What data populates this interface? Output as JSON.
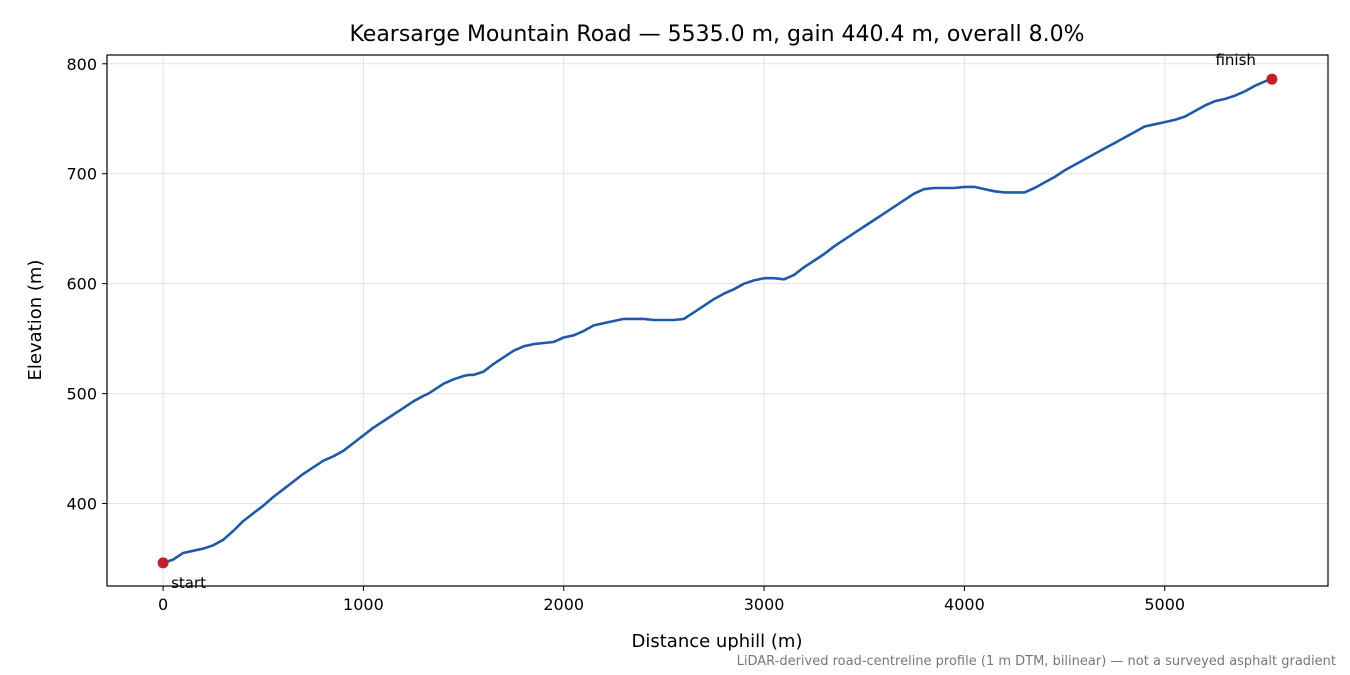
{
  "chart_data": {
    "type": "line",
    "title": "Kearsarge Mountain Road — 5535.0 m, gain 440.4 m, overall 8.0%",
    "xlabel": "Distance uphill (m)",
    "ylabel": "Elevation (m)",
    "xlim": [
      -280,
      5815
    ],
    "ylim": [
      325,
      808
    ],
    "xticks": [
      0,
      1000,
      2000,
      3000,
      4000,
      5000
    ],
    "yticks": [
      400,
      500,
      600,
      700,
      800
    ],
    "grid": true,
    "line_color": "#1f5aa8",
    "marker_color": "#c41e2a",
    "series": [
      {
        "x": [
          0,
          50,
          100,
          150,
          200,
          250,
          300,
          350,
          400,
          450,
          500,
          550,
          600,
          650,
          700,
          750,
          800,
          850,
          900,
          950,
          1000,
          1050,
          1100,
          1150,
          1200,
          1250,
          1300,
          1325,
          1350,
          1400,
          1450,
          1500,
          1525,
          1550,
          1600,
          1650,
          1700,
          1750,
          1800,
          1850,
          1900,
          1950,
          2000,
          2050,
          2100,
          2150,
          2200,
          2250,
          2300,
          2350,
          2400,
          2450,
          2500,
          2550,
          2600,
          2650,
          2700,
          2750,
          2800,
          2850,
          2900,
          2950,
          3000,
          3050,
          3100,
          3150,
          3200,
          3250,
          3300,
          3350,
          3400,
          3450,
          3500,
          3550,
          3600,
          3650,
          3700,
          3750,
          3800,
          3850,
          3900,
          3950,
          4000,
          4050,
          4100,
          4150,
          4200,
          4250,
          4300,
          4350,
          4400,
          4450,
          4500,
          4550,
          4600,
          4650,
          4700,
          4750,
          4800,
          4850,
          4900,
          4950,
          5000,
          5050,
          5100,
          5150,
          5200,
          5250,
          5300,
          5350,
          5400,
          5450,
          5500,
          5535
        ],
        "y": [
          346,
          349,
          355,
          357,
          359,
          362,
          367,
          375,
          384,
          391,
          398,
          406,
          413,
          420,
          427,
          433,
          439,
          443,
          448,
          455,
          462,
          469,
          475,
          481,
          487,
          493,
          498,
          500,
          503,
          509,
          513,
          516,
          517,
          517,
          520,
          527,
          533,
          539,
          543,
          545,
          546,
          547,
          551,
          553,
          557,
          562,
          564,
          566,
          568,
          568,
          568,
          567,
          567,
          567,
          568,
          574,
          580,
          586,
          591,
          595,
          600,
          603,
          605,
          605,
          604,
          608,
          615,
          621,
          627,
          634,
          640,
          646,
          652,
          658,
          664,
          670,
          676,
          682,
          686,
          687,
          687,
          687,
          688,
          688,
          686,
          684,
          683,
          683,
          683,
          687,
          692,
          697,
          703,
          708,
          713,
          718,
          723,
          728,
          733,
          738,
          743,
          745,
          747,
          749,
          752,
          757,
          762,
          766,
          768,
          771,
          775,
          780,
          784,
          786
        ]
      }
    ],
    "annotations": [
      {
        "label": "start",
        "x": 0,
        "y": 346
      },
      {
        "label": "finish",
        "x": 5535,
        "y": 786
      }
    ],
    "footnote": "LiDAR-derived road-centreline profile (1 m DTM, bilinear) — not a surveyed asphalt gradient"
  }
}
